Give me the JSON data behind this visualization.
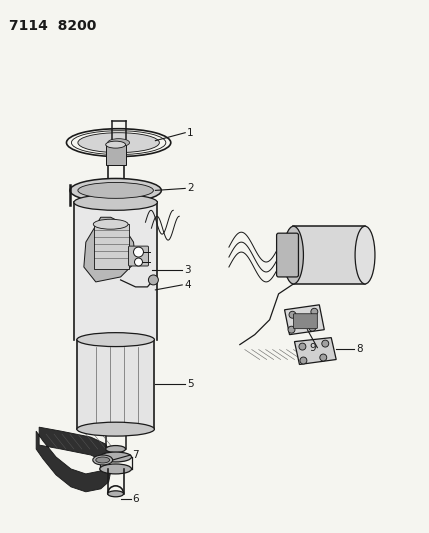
{
  "title": "7114  8200",
  "bg_color": "#f5f5f0",
  "fig_width": 4.29,
  "fig_height": 5.33,
  "dpi": 100,
  "label_fontsize": 7.5,
  "dark": "#1a1a1a",
  "gray_light": "#d4d4d4",
  "gray_mid": "#b0b0b0",
  "gray_dark": "#888888"
}
